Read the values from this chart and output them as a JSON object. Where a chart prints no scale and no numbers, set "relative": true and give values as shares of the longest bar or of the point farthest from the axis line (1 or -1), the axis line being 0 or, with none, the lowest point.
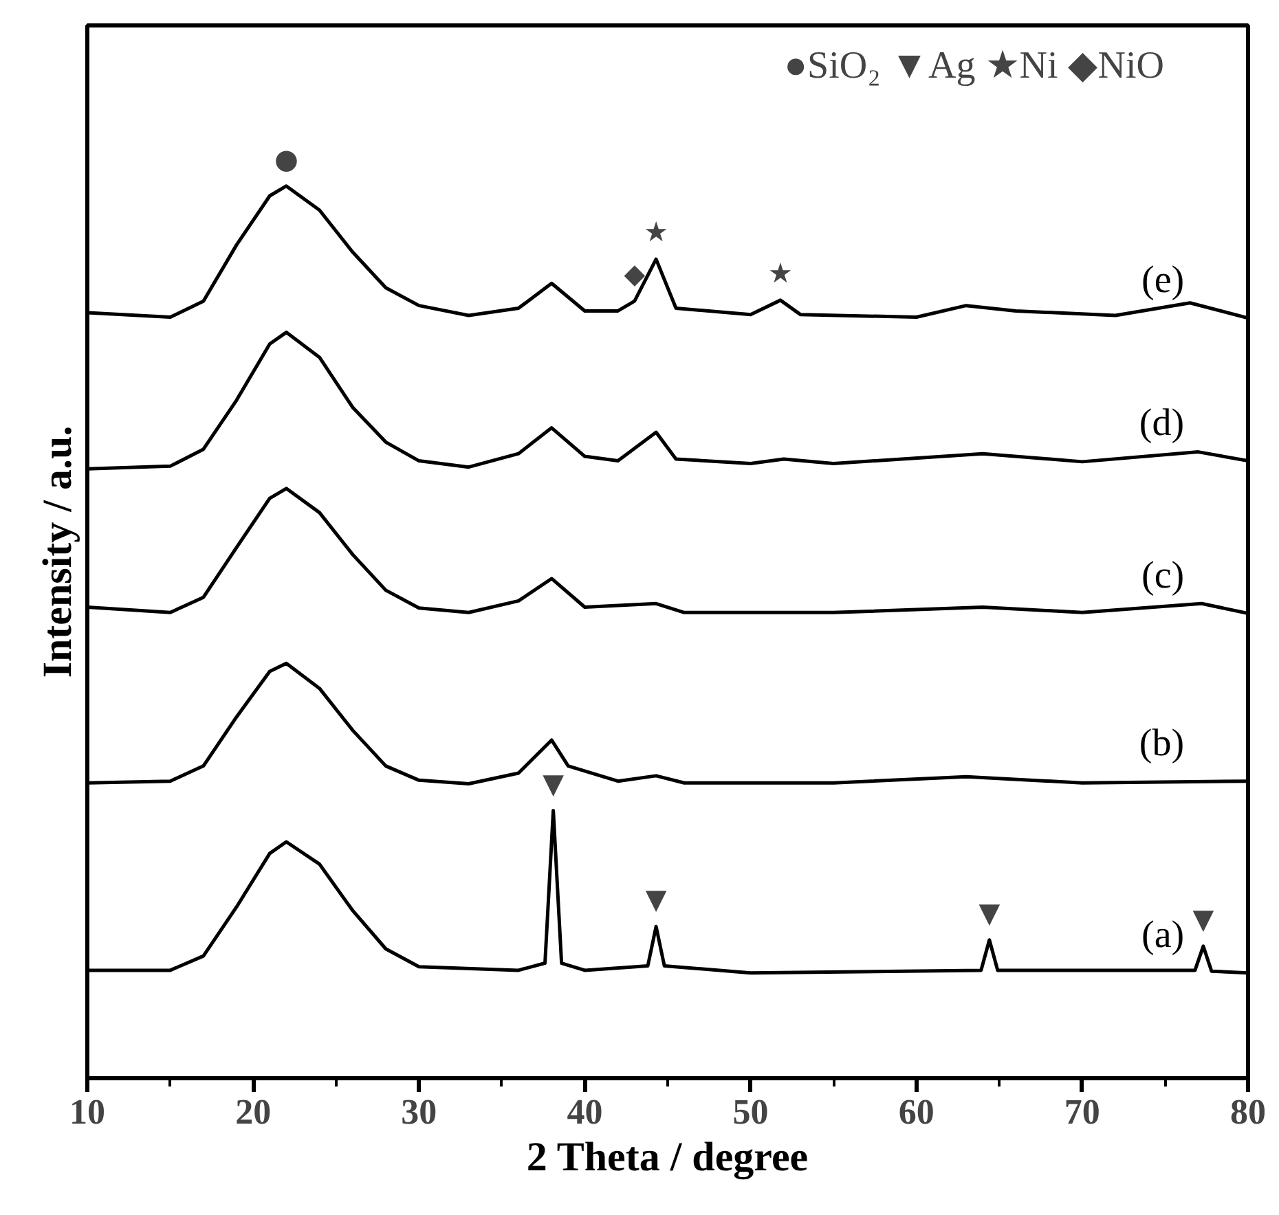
{
  "chart_data": {
    "type": "line",
    "relative": true,
    "xlabel": "2 Theta / degree",
    "ylabel": "Intensity / a.u.",
    "xlim": [
      10,
      80
    ],
    "xticks": [
      10,
      20,
      30,
      40,
      50,
      60,
      70,
      80
    ],
    "tick_labels": "x",
    "grid": false,
    "legend": false,
    "marker": "none",
    "line_style": "solid",
    "series": [
      {
        "name": "(a)",
        "color": "#000000",
        "x": [
          10,
          15,
          17,
          19,
          21,
          22,
          24,
          26,
          28,
          30,
          36,
          37.6,
          38.1,
          38.6,
          40,
          43.8,
          44.3,
          44.8,
          50,
          63.9,
          64.4,
          64.9,
          76.8,
          77.3,
          77.8,
          80
        ],
        "values": [
          0.121,
          0.121,
          0.137,
          0.192,
          0.252,
          0.265,
          0.24,
          0.188,
          0.145,
          0.125,
          0.121,
          0.129,
          0.3,
          0.129,
          0.121,
          0.126,
          0.17,
          0.126,
          0.118,
          0.121,
          0.155,
          0.121,
          0.121,
          0.148,
          0.12,
          0.118
        ]
      },
      {
        "name": "(b)",
        "color": "#000000",
        "x": [
          10,
          15,
          17,
          19,
          21,
          22,
          24,
          26,
          28,
          30,
          33,
          36,
          38,
          39,
          42,
          44.3,
          46,
          55,
          63,
          70,
          80
        ],
        "values": [
          0.331,
          0.333,
          0.35,
          0.405,
          0.456,
          0.465,
          0.437,
          0.39,
          0.35,
          0.334,
          0.33,
          0.342,
          0.379,
          0.35,
          0.333,
          0.339,
          0.331,
          0.331,
          0.338,
          0.331,
          0.333
        ]
      },
      {
        "name": "(c)",
        "color": "#000000",
        "x": [
          10,
          15,
          17,
          19,
          21,
          22,
          24,
          26,
          28,
          30,
          33,
          36,
          38,
          40,
          44.3,
          46,
          55,
          64,
          70,
          77.2,
          80
        ],
        "values": [
          0.528,
          0.522,
          0.539,
          0.595,
          0.65,
          0.661,
          0.634,
          0.587,
          0.547,
          0.527,
          0.522,
          0.535,
          0.56,
          0.528,
          0.532,
          0.522,
          0.522,
          0.528,
          0.522,
          0.532,
          0.521
        ]
      },
      {
        "name": "(d)",
        "color": "#000000",
        "x": [
          10,
          15,
          17,
          19,
          21,
          22,
          24,
          26,
          28,
          30,
          33,
          36,
          38,
          40,
          42,
          44.3,
          45.5,
          50,
          52,
          55,
          64,
          70,
          77,
          80
        ],
        "values": [
          0.683,
          0.686,
          0.705,
          0.76,
          0.823,
          0.836,
          0.808,
          0.752,
          0.713,
          0.692,
          0.685,
          0.7,
          0.729,
          0.697,
          0.692,
          0.724,
          0.694,
          0.689,
          0.694,
          0.689,
          0.7,
          0.691,
          0.702,
          0.692
        ]
      },
      {
        "name": "(e)",
        "color": "#000000",
        "x": [
          10,
          15,
          17,
          19,
          21,
          22,
          24,
          26,
          28,
          30,
          33,
          36,
          38,
          40,
          42,
          43,
          44.3,
          45.5,
          50,
          51.8,
          53,
          60,
          63,
          66,
          72,
          76.5,
          80
        ],
        "values": [
          0.858,
          0.853,
          0.871,
          0.934,
          0.989,
          1.0,
          0.973,
          0.926,
          0.886,
          0.866,
          0.855,
          0.863,
          0.891,
          0.86,
          0.86,
          0.871,
          0.918,
          0.863,
          0.856,
          0.872,
          0.856,
          0.853,
          0.866,
          0.86,
          0.855,
          0.869,
          0.852
        ]
      }
    ],
    "annotations": [
      "●SiO₂  ▼Ag  ★Ni  ◆NiO",
      {
        "text": "●",
        "x": 22,
        "y": 1.0
      },
      {
        "text": "▼",
        "x": 38.1,
        "y": 0.3
      },
      {
        "text": "▼",
        "x": 44.3,
        "y": 0.17
      },
      {
        "text": "▼",
        "x": 64.4,
        "y": 0.155
      },
      {
        "text": "▼",
        "x": 77.3,
        "y": 0.148
      },
      {
        "text": "◆",
        "x": 43,
        "y": 0.871
      },
      {
        "text": "★",
        "x": 44.3,
        "y": 0.918
      },
      {
        "text": "★",
        "x": 51.8,
        "y": 0.872
      }
    ]
  }
}
